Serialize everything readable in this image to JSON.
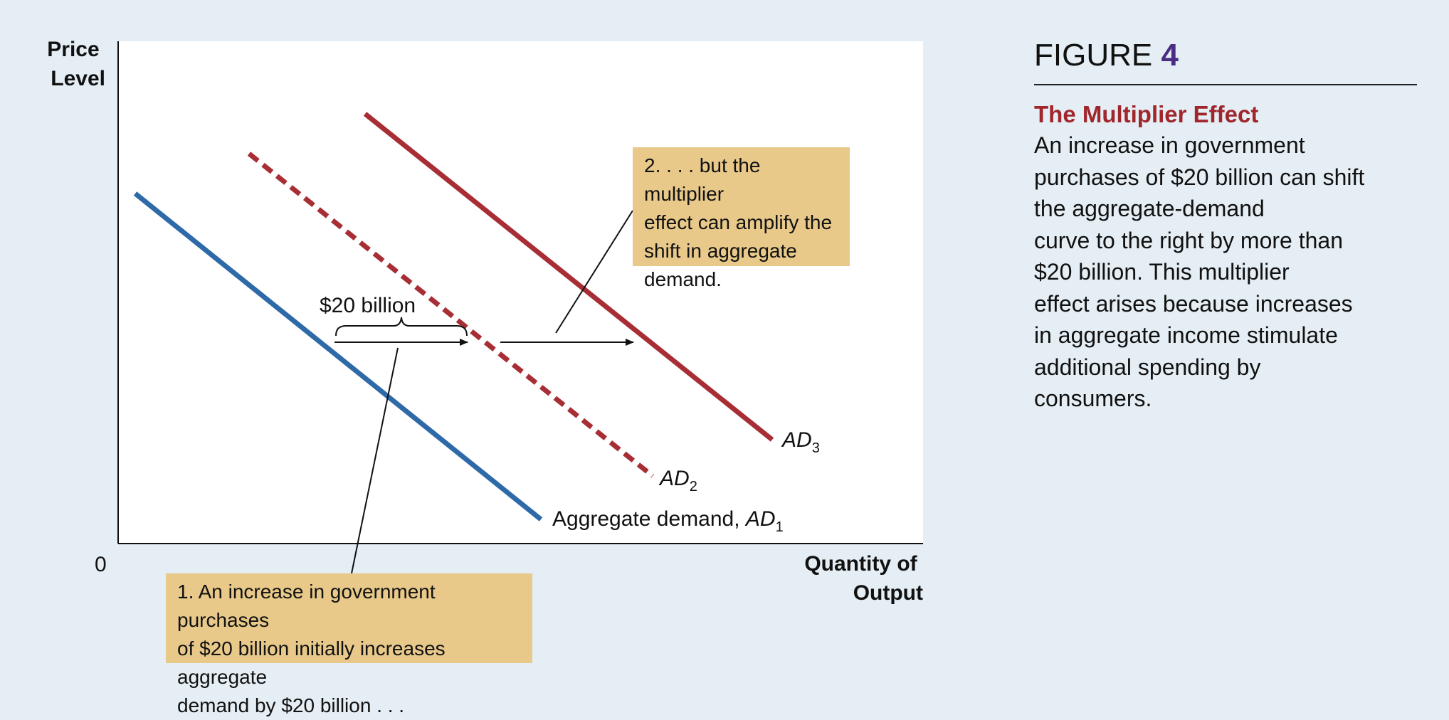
{
  "figure": {
    "label": "FIGURE",
    "number": "4",
    "title": "The Multiplier Effect",
    "caption_lines": [
      "An increase in government",
      "purchases of $20 billion can shift",
      "the aggregate-demand",
      "curve to the right by more than",
      "$20 billion. This multiplier",
      "effect arises because increases",
      "in aggregate income stimulate",
      "additional spending by",
      "consumers."
    ]
  },
  "axes": {
    "y_label_lines": [
      "Price",
      "Level"
    ],
    "x_label_lines": [
      "Quantity of",
      "Output"
    ],
    "origin": "0"
  },
  "curves": {
    "ad1": {
      "prefix": "Aggregate demand, ",
      "name": "AD",
      "sub": "1"
    },
    "ad2": {
      "name": "AD",
      "sub": "2"
    },
    "ad3": {
      "name": "AD",
      "sub": "3"
    }
  },
  "brace_label": "$20 billion",
  "callouts": {
    "one": [
      "1. An increase in government purchases",
      "of $20 billion initially increases aggregate",
      "demand by $20 billion . . ."
    ],
    "two": [
      "2. . . . but the multiplier",
      "effect can amplify the",
      "shift in aggregate",
      "demand."
    ]
  },
  "colors": {
    "ad1": "#2f6aa8",
    "ad2": "#a82e35",
    "ad3": "#a82e35",
    "callout_bg": "#e8c98a",
    "figure_number": "#4a2c82",
    "subtitle": "#a0262c"
  }
}
